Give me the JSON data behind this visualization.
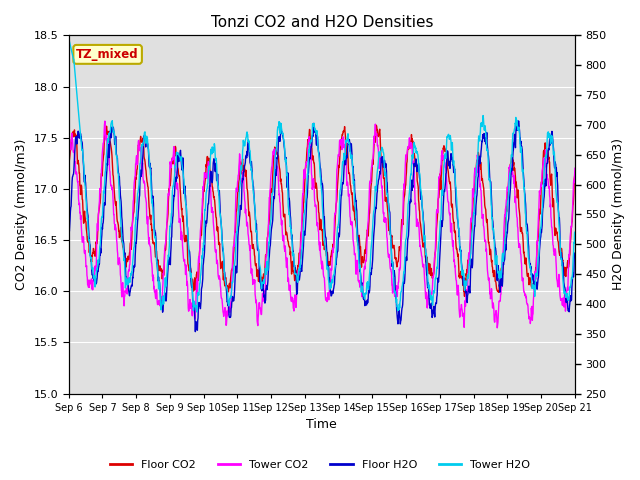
{
  "title": "Tonzi CO2 and H2O Densities",
  "xlabel": "Time",
  "ylabel_left": "CO2 Density (mmol/m3)",
  "ylabel_right": "H2O Density (mmol/m3)",
  "ylim_left": [
    15.0,
    18.5
  ],
  "ylim_right": [
    250,
    850
  ],
  "xtick_labels": [
    "Sep 6",
    "Sep 7",
    "Sep 8",
    "Sep 9",
    "Sep 10",
    "Sep 11",
    "Sep 12",
    "Sep 13",
    "Sep 14",
    "Sep 15",
    "Sep 16",
    "Sep 17",
    "Sep 18",
    "Sep 19",
    "Sep 20",
    "Sep 21"
  ],
  "yticks_left": [
    15.0,
    15.5,
    16.0,
    16.5,
    17.0,
    17.5,
    18.0,
    18.5
  ],
  "yticks_right": [
    250,
    300,
    350,
    400,
    450,
    500,
    550,
    600,
    650,
    700,
    750,
    800,
    850
  ],
  "annotation_text": "TZ_mixed",
  "annotation_color": "#cc0000",
  "annotation_bg": "#ffffcc",
  "annotation_border": "#bbaa00",
  "colors": {
    "floor_co2": "#dd0000",
    "tower_co2": "#ff00ff",
    "floor_h2o": "#0000cc",
    "tower_h2o": "#00ccee"
  },
  "legend_labels": [
    "Floor CO2",
    "Tower CO2",
    "Floor H2O",
    "Tower H2O"
  ],
  "bg_color": "#e0e0e0",
  "n_points": 1500,
  "seed": 7
}
